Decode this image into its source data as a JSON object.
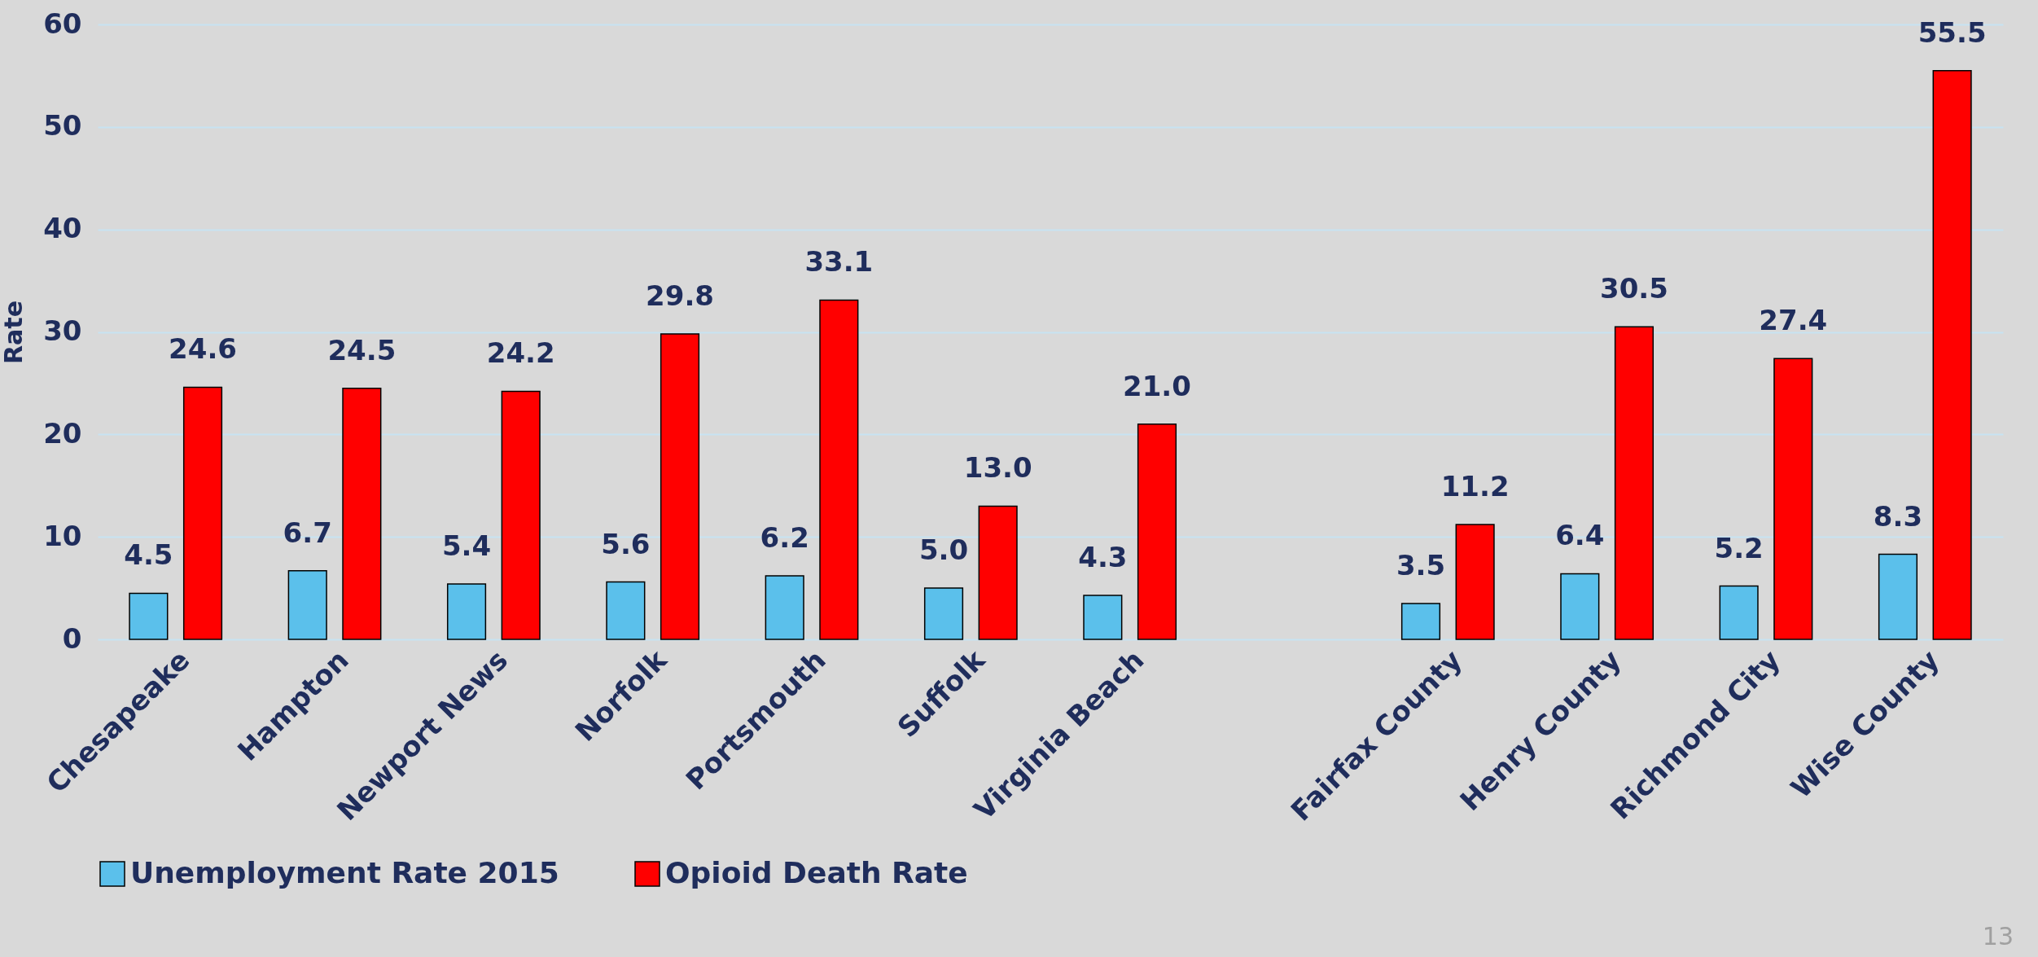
{
  "chart_data": {
    "type": "bar",
    "ylabel": "Rate",
    "categories": [
      "Chesapeake",
      "Hampton",
      "Newport News",
      "Norfolk",
      "Portsmouth",
      "Suffolk",
      "Virginia Beach",
      null,
      "Fairfax County",
      "Henry County",
      "Richmond City",
      "Wise County"
    ],
    "series": [
      {
        "name": "Unemployment Rate 2015",
        "color": "#5bc0eb",
        "values": [
          4.5,
          6.7,
          5.4,
          5.6,
          6.2,
          5.0,
          4.3,
          null,
          3.5,
          6.4,
          5.2,
          8.3
        ],
        "value_labels": [
          "4.5",
          "6.7",
          "5.4",
          "5.6",
          "6.2",
          "5.0",
          "4.3",
          null,
          "3.5",
          "6.4",
          "5.2",
          "8.3"
        ]
      },
      {
        "name": "Opioid Death Rate",
        "color": "#ff0000",
        "values": [
          24.6,
          24.5,
          24.2,
          29.8,
          33.1,
          13.0,
          21.0,
          null,
          11.2,
          30.5,
          27.4,
          55.5
        ],
        "value_labels": [
          "24.6",
          "24.5",
          "24.2",
          "29.8",
          "33.1",
          "13.0",
          "21.0",
          null,
          "11.2",
          "30.5",
          "27.4",
          "55.5"
        ]
      }
    ],
    "ylim": [
      0,
      60
    ],
    "yticks": [
      0,
      10,
      20,
      30,
      40,
      50,
      60
    ],
    "grid": "y",
    "legend": "bottom",
    "annotations": [
      "13"
    ]
  }
}
